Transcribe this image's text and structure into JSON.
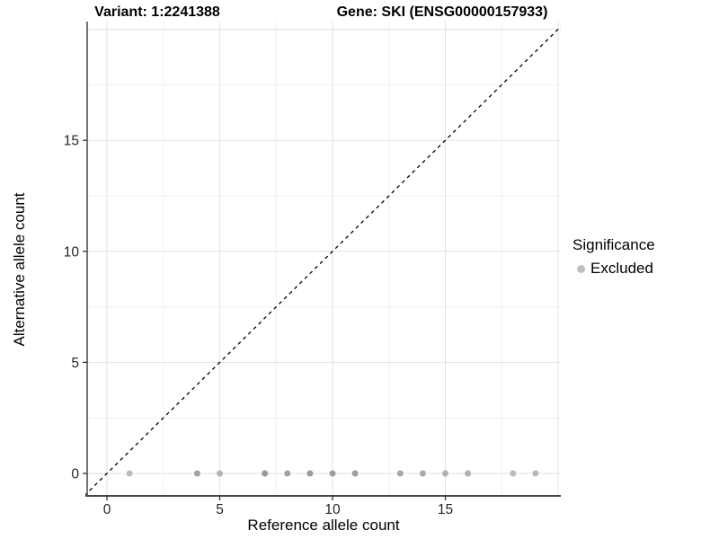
{
  "chart_data": {
    "type": "scatter",
    "title_left": "Variant: 1:2241388",
    "title_right": "Gene: SKI (ENSG00000157933)",
    "xlabel": "Reference allele count",
    "ylabel": "Alternative allele count",
    "xlim": [
      -1,
      20.2
    ],
    "ylim": [
      -1,
      20.3
    ],
    "xticks": [
      0,
      5,
      10,
      15
    ],
    "yticks": [
      0,
      5,
      10,
      15
    ],
    "minor_ticks": [
      2.5,
      7.5,
      12.5,
      17.5,
      20
    ],
    "grid": "on",
    "legend": {
      "position": "right",
      "title": "Significance",
      "items": [
        {
          "label": "Excluded",
          "color": "#bdbdbd"
        }
      ]
    },
    "reference_line": {
      "slope": 1,
      "intercept": 0,
      "style": "dashed",
      "color": "#000000"
    },
    "series": [
      {
        "name": "Excluded",
        "points": [
          {
            "x": 1,
            "y": 0,
            "shade": "#bcbcbc"
          },
          {
            "x": 4,
            "y": 0,
            "shade": "#a2a2a2"
          },
          {
            "x": 5,
            "y": 0,
            "shade": "#b2b2b2"
          },
          {
            "x": 7,
            "y": 0,
            "shade": "#999999"
          },
          {
            "x": 8,
            "y": 0,
            "shade": "#a2a2a2"
          },
          {
            "x": 9,
            "y": 0,
            "shade": "#9c9c9c"
          },
          {
            "x": 10,
            "y": 0,
            "shade": "#9c9c9c"
          },
          {
            "x": 11,
            "y": 0,
            "shade": "#9e9e9e"
          },
          {
            "x": 13,
            "y": 0,
            "shade": "#a8a8a8"
          },
          {
            "x": 14,
            "y": 0,
            "shade": "#aaaaaa"
          },
          {
            "x": 15,
            "y": 0,
            "shade": "#b0b0b0"
          },
          {
            "x": 16,
            "y": 0,
            "shade": "#b0b0b0"
          },
          {
            "x": 18,
            "y": 0,
            "shade": "#bcbcbc"
          },
          {
            "x": 19,
            "y": 0,
            "shade": "#b8b8b8"
          }
        ]
      }
    ],
    "colors": {
      "grid_major": "#e2e2e2",
      "grid_minor": "#f0f0f0",
      "axis_line": "#474747",
      "tick_mark": "#333333",
      "tick_label": "#262626"
    }
  }
}
